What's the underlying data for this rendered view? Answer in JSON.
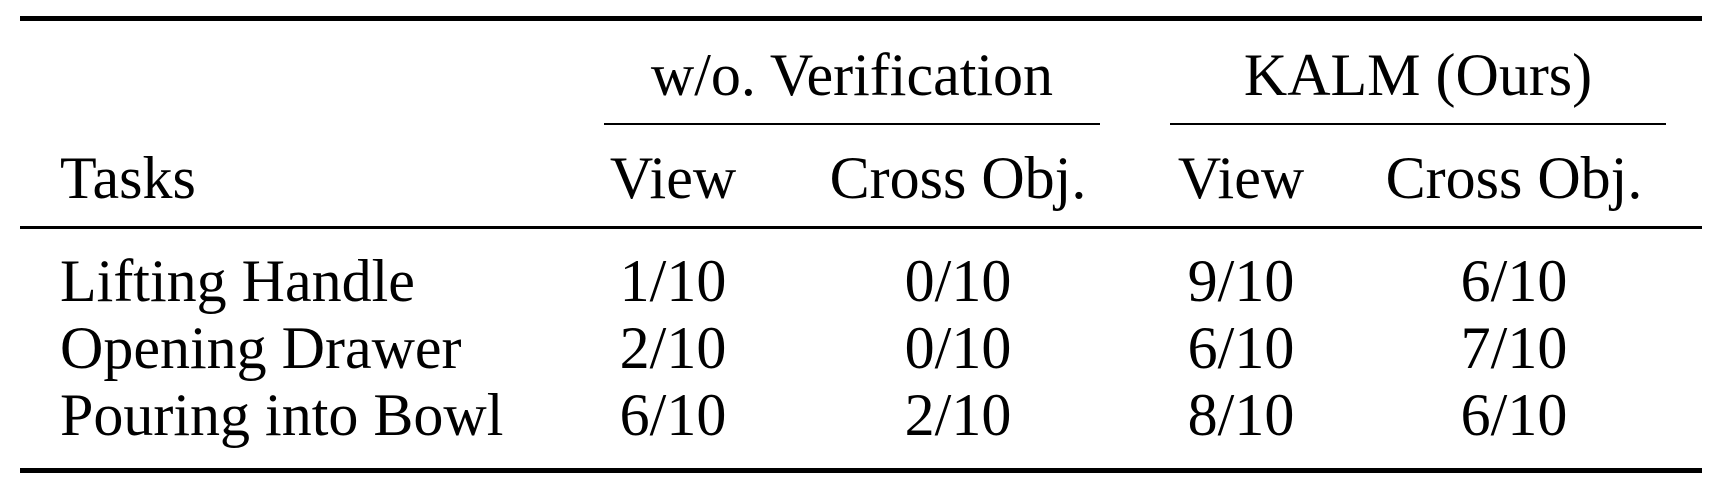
{
  "table": {
    "group_headers": [
      "w/o. Verification",
      "KALM (Ours)"
    ],
    "column_headers": [
      "Tasks",
      "View",
      "Cross Obj.",
      "View",
      "Cross Obj."
    ],
    "rows": [
      {
        "task": "Lifting Handle",
        "values": [
          "1/10",
          "0/10",
          "9/10",
          "6/10"
        ]
      },
      {
        "task": "Opening Drawer",
        "values": [
          "2/10",
          "0/10",
          "6/10",
          "7/10"
        ]
      },
      {
        "task": "Pouring into Bowl",
        "values": [
          "6/10",
          "2/10",
          "8/10",
          "6/10"
        ]
      }
    ]
  }
}
